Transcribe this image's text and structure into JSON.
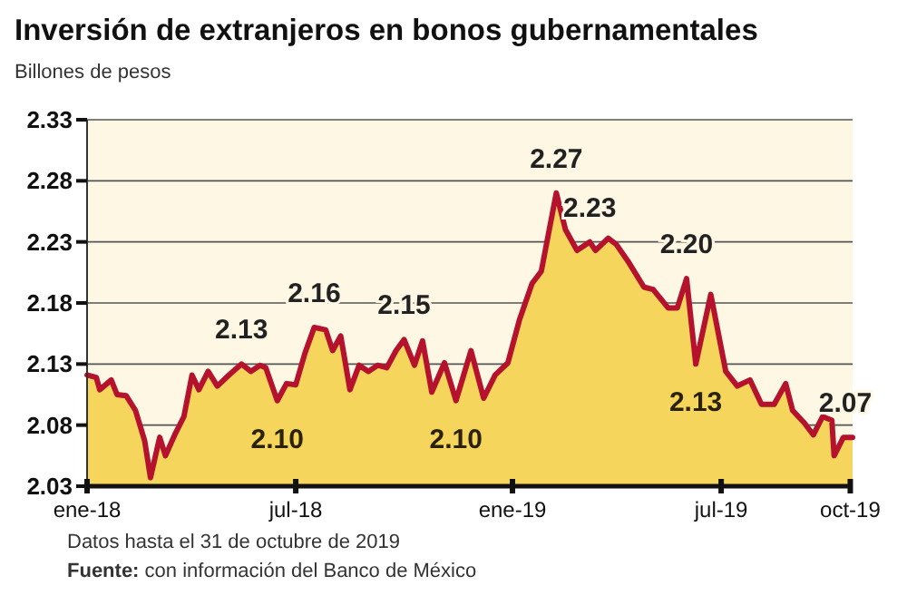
{
  "chart_data": {
    "type": "area",
    "title": "Inversión de extranjeros en bonos gubernamentales",
    "subtitle": "Billones de pesos",
    "annotations": [
      "Datos hasta el 31 de octubre de 2019",
      "Fuente: con información del Banco de México"
    ],
    "x": [
      "2018-01-01",
      "2018-01-09",
      "2018-01-12",
      "2018-01-22",
      "2018-01-27",
      "2018-02-04",
      "2018-02-12",
      "2018-02-20",
      "2018-02-25",
      "2018-03-05",
      "2018-03-10",
      "2018-03-18",
      "2018-03-26",
      "2018-04-02",
      "2018-04-08",
      "2018-04-16",
      "2018-04-24",
      "2018-05-04",
      "2018-05-15",
      "2018-05-23",
      "2018-05-31",
      "2018-06-05",
      "2018-06-15",
      "2018-06-23",
      "2018-07-01",
      "2018-07-09",
      "2018-07-17",
      "2018-07-27",
      "2018-08-02",
      "2018-08-09",
      "2018-08-17",
      "2018-08-25",
      "2018-09-02",
      "2018-09-10",
      "2018-09-18",
      "2018-09-26",
      "2018-10-03",
      "2018-10-12",
      "2018-10-19",
      "2018-10-27",
      "2018-11-07",
      "2018-11-17",
      "2018-11-30",
      "2018-12-11",
      "2018-12-21",
      "2019-01-01",
      "2019-01-11",
      "2019-01-22",
      "2019-01-30",
      "2019-02-12",
      "2019-02-20",
      "2019-03-02",
      "2019-03-13",
      "2019-03-18",
      "2019-03-29",
      "2019-04-05",
      "2019-04-16",
      "2019-04-29",
      "2019-05-07",
      "2019-05-20",
      "2019-05-28",
      "2019-06-05",
      "2019-06-13",
      "2019-06-26",
      "2019-07-09",
      "2019-07-19",
      "2019-07-30",
      "2019-08-09",
      "2019-08-20",
      "2019-08-30",
      "2019-09-05",
      "2019-09-15",
      "2019-09-23",
      "2019-10-01",
      "2019-10-09",
      "2019-10-11",
      "2019-10-19",
      "2019-10-27"
    ],
    "series": [
      {
        "color": "#b5122e",
        "values": [
          2.121,
          2.119,
          2.109,
          2.117,
          2.105,
          2.104,
          2.092,
          2.067,
          2.037,
          2.07,
          2.055,
          2.072,
          2.087,
          2.121,
          2.109,
          2.124,
          2.112,
          2.121,
          2.13,
          2.124,
          2.129,
          2.127,
          2.1,
          2.114,
          2.113,
          2.139,
          2.16,
          2.158,
          2.141,
          2.153,
          2.109,
          2.129,
          2.124,
          2.129,
          2.127,
          2.141,
          2.15,
          2.129,
          2.149,
          2.107,
          2.131,
          2.1,
          2.141,
          2.102,
          2.121,
          2.131,
          2.166,
          2.196,
          2.206,
          2.27,
          2.24,
          2.223,
          2.23,
          2.223,
          2.233,
          2.228,
          2.213,
          2.193,
          2.191,
          2.176,
          2.176,
          2.2,
          2.13,
          2.187,
          2.124,
          2.112,
          2.117,
          2.097,
          2.097,
          2.114,
          2.092,
          2.082,
          2.072,
          2.087,
          2.084,
          2.055,
          2.07,
          2.07
        ],
        "value_labels": [
          null,
          null,
          null,
          null,
          null,
          null,
          null,
          null,
          null,
          null,
          null,
          null,
          null,
          null,
          null,
          null,
          null,
          null,
          "2.13",
          null,
          null,
          null,
          "2.10",
          null,
          null,
          null,
          "2.16",
          null,
          null,
          null,
          null,
          null,
          null,
          null,
          null,
          null,
          "2.15",
          null,
          null,
          null,
          null,
          "2.10",
          null,
          null,
          null,
          null,
          null,
          null,
          null,
          "2.27",
          null,
          null,
          "2.23",
          null,
          null,
          null,
          null,
          null,
          null,
          null,
          null,
          "2.20",
          "2.13",
          null,
          null,
          null,
          null,
          null,
          null,
          null,
          null,
          null,
          null,
          null,
          null,
          null,
          null,
          "2.07"
        ]
      }
    ],
    "xlim": [
      "2018-01-01",
      "2019-10-27"
    ],
    "xticks": [
      {
        "value": "2018-01-01",
        "label": "ene-18"
      },
      {
        "value": "2018-07-01",
        "label": "jul-18"
      },
      {
        "value": "2019-01-05",
        "label": "ene-19"
      },
      {
        "value": "2019-07-05",
        "label": "jul-19"
      },
      {
        "value": "2019-10-25",
        "label": "oct-19"
      }
    ],
    "ylim": [
      2.03,
      2.33
    ],
    "yticks": [
      2.03,
      2.08,
      2.13,
      2.18,
      2.23,
      2.28,
      2.33
    ],
    "grid": "y"
  }
}
